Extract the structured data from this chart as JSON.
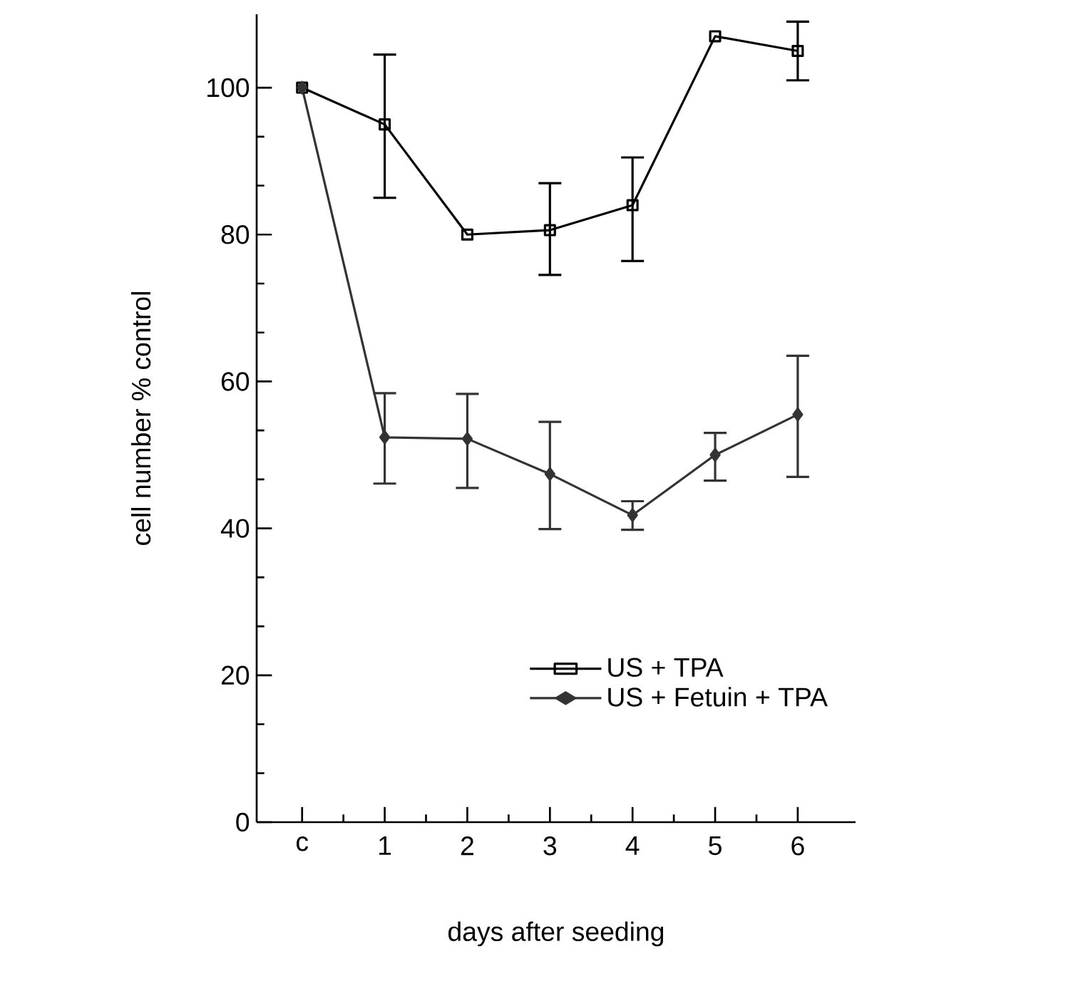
{
  "chart_data": {
    "type": "line",
    "xlabel": "days after seeding",
    "ylabel": "cell number % control",
    "categories": [
      "c",
      "1",
      "2",
      "3",
      "4",
      "5",
      "6"
    ],
    "ylim": [
      0,
      110
    ],
    "yticks": [
      0,
      20,
      40,
      60,
      80,
      100
    ],
    "grid": false,
    "legend": "bottom right",
    "series": [
      {
        "name": "US + TPA",
        "color": "#000000",
        "marker": "square",
        "values": [
          100,
          95,
          80,
          80.6,
          84,
          107,
          105
        ],
        "errors": [
          null,
          [
            85,
            104.5
          ],
          null,
          [
            74.5,
            87
          ],
          [
            76.4,
            90.5
          ],
          null,
          [
            101,
            109
          ]
        ]
      },
      {
        "name": "US + Fetuin + TPA",
        "color": "#333333",
        "marker": "diamond",
        "values": [
          100,
          52.4,
          52.2,
          47.4,
          41.8,
          50,
          55.5
        ],
        "errors": [
          null,
          [
            46.1,
            58.4
          ],
          [
            45.5,
            58.3
          ],
          [
            39.9,
            54.5
          ],
          [
            39.8,
            43.7
          ],
          [
            46.5,
            53
          ],
          [
            47,
            63.5
          ]
        ]
      }
    ]
  }
}
